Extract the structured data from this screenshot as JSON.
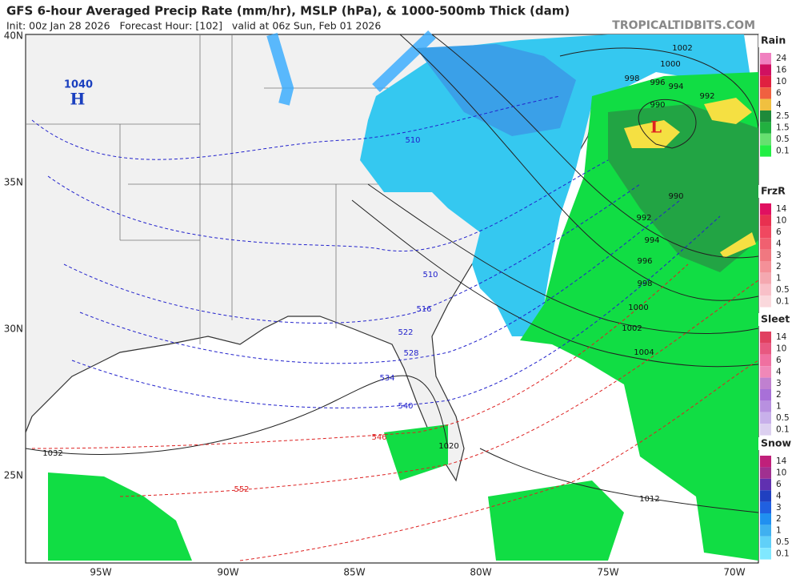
{
  "header": {
    "title": "GFS 6-hour Averaged Precip Rate (mm/hr), MSLP (hPa), & 1000-500mb Thick (dam)",
    "init": "Init: 00z Jan 28 2026   Forecast Hour: [102]   valid at 06z Sun, Feb 01 2026",
    "site": "TROPICALTIDBITS.COM"
  },
  "map": {
    "high_pressure": "1040",
    "high": "H",
    "low": "L",
    "lat_labels": [
      "40N",
      "35N",
      "30N",
      "25N"
    ],
    "lon_labels": [
      "95W",
      "90W",
      "85W",
      "80W",
      "75W",
      "70W"
    ],
    "isobar_labels": [
      "1002",
      "1000",
      "998",
      "996",
      "994",
      "992",
      "990",
      "990",
      "992",
      "994",
      "996",
      "998",
      "1000",
      "1002",
      "1004",
      "1012",
      "1020",
      "1032"
    ],
    "thickness_labels": [
      "510",
      "510",
      "516",
      "522",
      "528",
      "534",
      "540",
      "546",
      "552"
    ]
  },
  "legend": [
    {
      "title": "Rain",
      "levels": [
        24,
        16,
        10,
        6,
        4,
        2.5,
        1.5,
        0.5,
        0.1
      ]
    },
    {
      "title": "FrzR",
      "levels": [
        14,
        10,
        6,
        4,
        3,
        2,
        1,
        0.5,
        0.1
      ]
    },
    {
      "title": "Sleet",
      "levels": [
        14,
        10,
        6,
        4,
        3,
        2,
        1,
        0.5,
        0.1
      ]
    },
    {
      "title": "Snow",
      "levels": [
        14,
        10,
        6,
        4,
        3,
        2,
        1,
        0.5,
        0.1
      ]
    }
  ]
}
